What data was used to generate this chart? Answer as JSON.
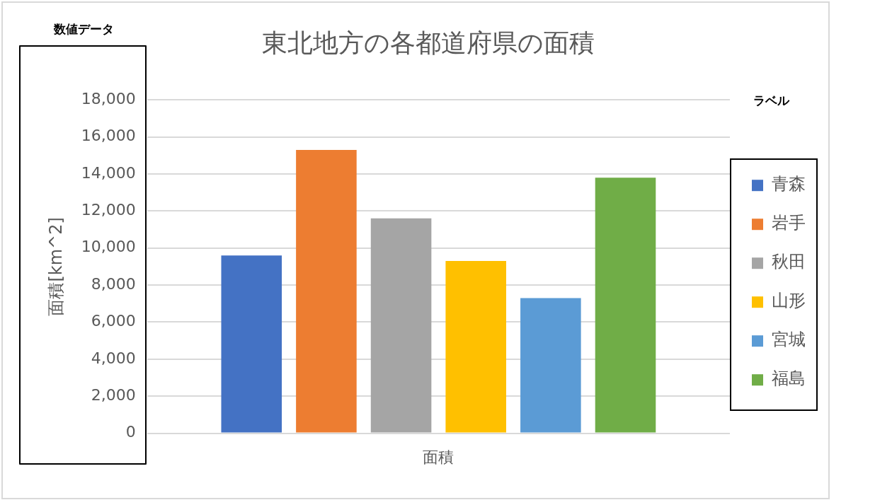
{
  "chart_data": {
    "type": "bar",
    "title": "東北地方の各都道府県の面積",
    "ylabel": "面積[km^2]",
    "categories": [
      "面積"
    ],
    "series": [
      {
        "name": "青森",
        "color": "#4472c4",
        "values": [
          9600
        ]
      },
      {
        "name": "岩手",
        "color": "#ed7d31",
        "values": [
          15300
        ]
      },
      {
        "name": "秋田",
        "color": "#a5a5a5",
        "values": [
          11600
        ]
      },
      {
        "name": "山形",
        "color": "#ffc000",
        "values": [
          9300
        ]
      },
      {
        "name": "宮城",
        "color": "#5b9bd5",
        "values": [
          7300
        ]
      },
      {
        "name": "福島",
        "color": "#70ad47",
        "values": [
          13800
        ]
      }
    ],
    "ylim": [
      0,
      18000
    ],
    "yticks": [
      0,
      {
        "value": 2000,
        "label": "2,000"
      },
      {
        "value": 4000,
        "label": "4,000"
      },
      {
        "value": 6000,
        "label": "6,000"
      },
      {
        "value": 8000,
        "label": "8,000"
      },
      {
        "value": 10000,
        "label": "10,000"
      },
      {
        "value": 12000,
        "label": "12,000"
      },
      {
        "value": 14000,
        "label": "14,000"
      },
      {
        "value": 16000,
        "label": "16,000"
      },
      {
        "value": 18000,
        "label": "18,000"
      }
    ],
    "grid": "y",
    "legend": "right",
    "legend_title": "ラベル",
    "annotations": [
      "数値データ"
    ]
  }
}
